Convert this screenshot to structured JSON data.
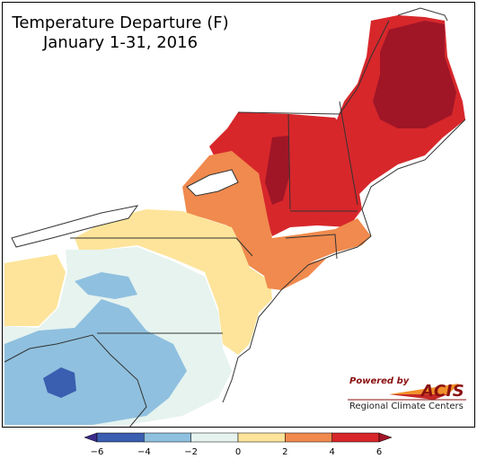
{
  "title": "Temperature Departure (F)",
  "subtitle": "January 1-31, 2016",
  "logo": {
    "powered_by": "Powered by",
    "name": "ACIS",
    "org": "Regional Climate Centers"
  },
  "legend": {
    "ticks": [
      "−6",
      "−4",
      "−2",
      "0",
      "2",
      "4",
      "6"
    ],
    "bins": [
      {
        "range": "-6 to -4",
        "color": "#3a5eb0"
      },
      {
        "range": "-4 to -2",
        "color": "#8fc0df"
      },
      {
        "range": "-2 to 0",
        "color": "#e6f3ef"
      },
      {
        "range": "0 to 2",
        "color": "#fde49a"
      },
      {
        "range": "2 to 4",
        "color": "#f08a4e"
      },
      {
        "range": "4 to 6",
        "color": "#d7272b"
      }
    ],
    "overflow_high_color": "#a01627",
    "overflow_low_color": "#3a2b8a"
  }
}
